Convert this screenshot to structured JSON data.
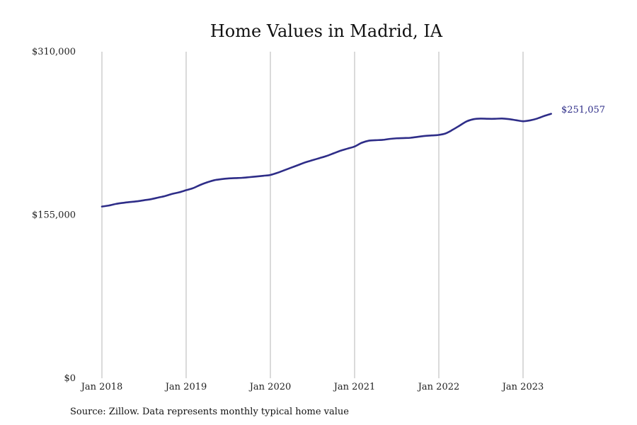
{
  "chart_data": {
    "type": "line",
    "title": "Home Values in Madrid, IA",
    "source": "Source: Zillow. Data represents monthly typical home value",
    "xlabel": "",
    "ylabel": "",
    "x_ticks": [
      "Jan 2018",
      "Jan 2019",
      "Jan 2020",
      "Jan 2021",
      "Jan 2022",
      "Jan 2023"
    ],
    "y_ticks": [
      "$0",
      "$155,000",
      "$310,000"
    ],
    "y_tick_values": [
      0,
      155000,
      310000
    ],
    "ylim": [
      0,
      310000
    ],
    "xlim": [
      "2018-01",
      "2023-12"
    ],
    "grid": "vertical",
    "end_label": "$251,057",
    "line_color": "#2e2d88",
    "series": [
      {
        "x": [
          "2018-01",
          "2018-02",
          "2018-03",
          "2018-04",
          "2018-05",
          "2018-06",
          "2018-07",
          "2018-08",
          "2018-09",
          "2018-10",
          "2018-11",
          "2018-12",
          "2019-01",
          "2019-02",
          "2019-03",
          "2019-04",
          "2019-05",
          "2019-06",
          "2019-07",
          "2019-08",
          "2019-09",
          "2019-10",
          "2019-11",
          "2019-12",
          "2020-01",
          "2020-02",
          "2020-03",
          "2020-04",
          "2020-05",
          "2020-06",
          "2020-07",
          "2020-08",
          "2020-09",
          "2020-10",
          "2020-11",
          "2020-12",
          "2021-01",
          "2021-02",
          "2021-03",
          "2021-04",
          "2021-05",
          "2021-06",
          "2021-07",
          "2021-08",
          "2021-09",
          "2021-10",
          "2021-11",
          "2021-12",
          "2022-01",
          "2022-02",
          "2022-03",
          "2022-04",
          "2022-05",
          "2022-06",
          "2022-07",
          "2022-08",
          "2022-09",
          "2022-10",
          "2022-11",
          "2022-12",
          "2023-01",
          "2023-02",
          "2023-03",
          "2023-04",
          "2023-05"
        ],
        "values": [
          163000,
          164000,
          165500,
          166500,
          167300,
          168000,
          169000,
          170000,
          171500,
          173000,
          175000,
          176500,
          178500,
          180500,
          183500,
          186000,
          188000,
          189000,
          189700,
          190000,
          190300,
          190900,
          191500,
          192200,
          193000,
          195000,
          197500,
          200000,
          202500,
          205000,
          207000,
          209000,
          211000,
          213500,
          216000,
          218000,
          220000,
          223500,
          225500,
          226000,
          226300,
          227200,
          227800,
          228000,
          228300,
          229200,
          230000,
          230500,
          231000,
          232500,
          236000,
          240000,
          244000,
          246000,
          246500,
          246300,
          246300,
          246600,
          246000,
          245000,
          244000,
          244800,
          246500,
          249000,
          251057
        ]
      }
    ]
  }
}
